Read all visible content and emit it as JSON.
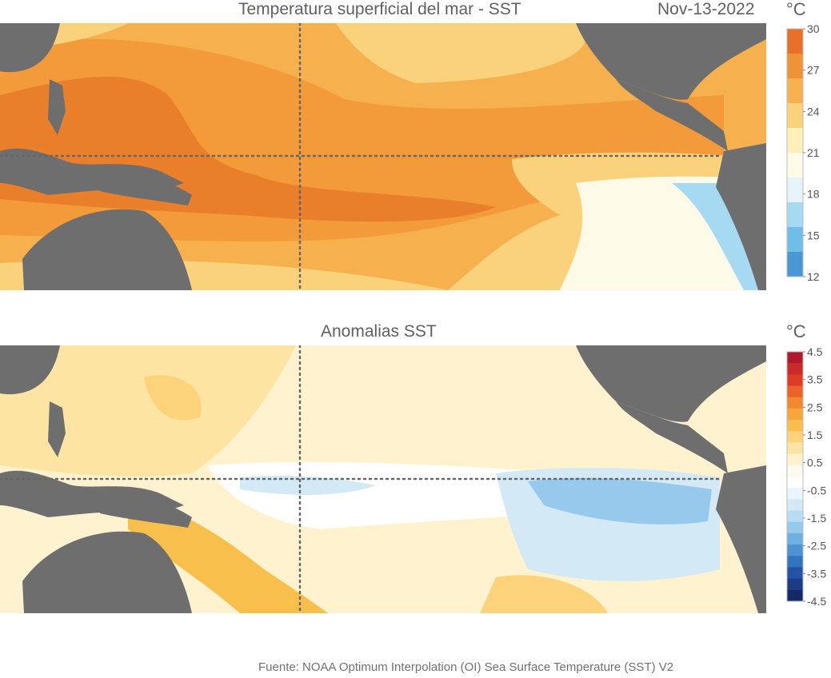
{
  "top_panel": {
    "title": "Temperatura superficial del mar - SST",
    "date": "Nov-13-2022",
    "unit": "°C",
    "colorbar": {
      "ticks": [
        "30",
        "27",
        "24",
        "21",
        "18",
        "15",
        "12"
      ],
      "colors": [
        "#e8712a",
        "#f09236",
        "#f7b14e",
        "#fbd27c",
        "#fef0b8",
        "#fdfbe8",
        "#e6f3f9",
        "#a6daf2",
        "#6fbde8",
        "#4a97d6"
      ]
    }
  },
  "bottom_panel": {
    "title": "Anomalias SST",
    "unit": "°C",
    "colorbar": {
      "ticks": [
        "4.5",
        "3.5",
        "2.5",
        "1.5",
        "0.5",
        "-0.5",
        "-1.5",
        "-2.5",
        "-3.5",
        "-4.5"
      ],
      "colors": [
        "#b2182b",
        "#c92a2a",
        "#de3b24",
        "#ec6228",
        "#f3892d",
        "#f7a63a",
        "#f9bf4d",
        "#fcd27a",
        "#fde4a3",
        "#fff3cf",
        "#fffaf0",
        "#ffffff",
        "#e9f4fb",
        "#d3e9f6",
        "#b8dcf2",
        "#97c9ec",
        "#6fb0e2",
        "#4d92d2",
        "#3473be",
        "#2453a3",
        "#1c3d86",
        "#132a66"
      ]
    }
  },
  "source": "Fuente: NOAA Optimum Interpolation (OI) Sea Surface Temperature (SST) V2",
  "colors": {
    "land": "#6e6e6e",
    "grid_dots": "#666666"
  }
}
